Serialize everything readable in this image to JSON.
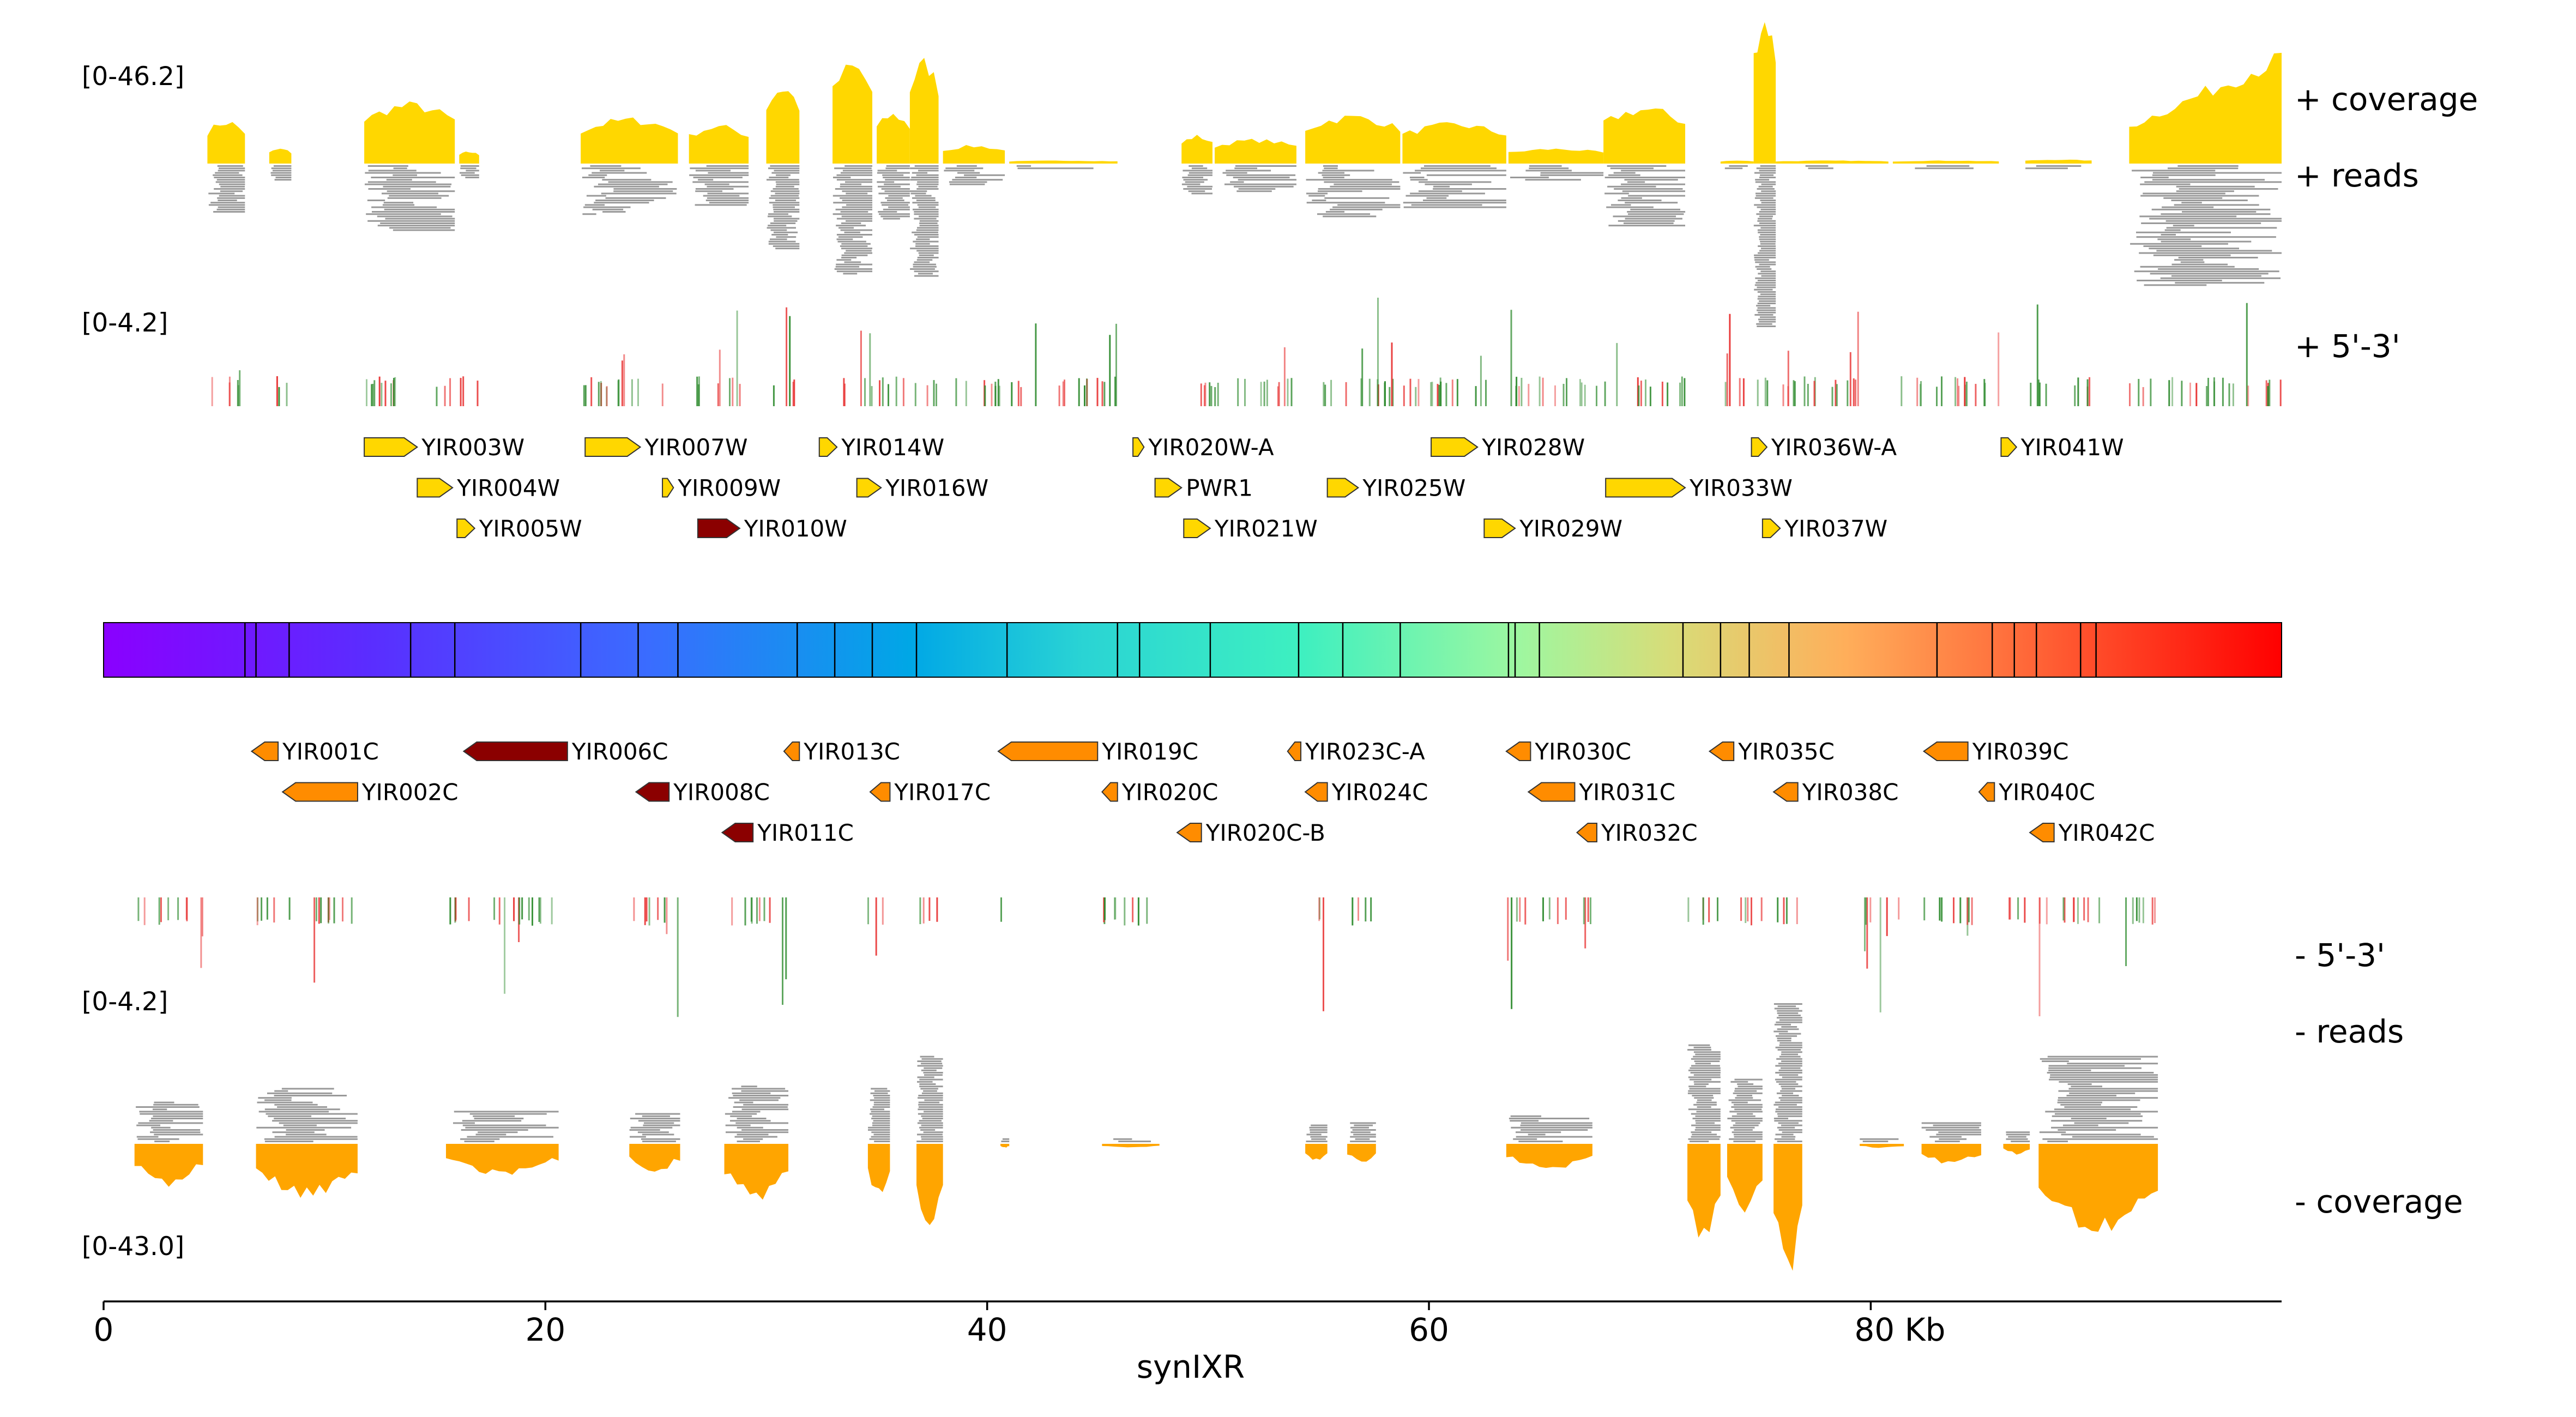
{
  "figure": {
    "xaxis": {
      "label": "synIXR",
      "range_kb": [
        0,
        98.6
      ],
      "ticks": [
        {
          "value": 0,
          "label": "0"
        },
        {
          "value": 20,
          "label": "20"
        },
        {
          "value": 40,
          "label": "40"
        },
        {
          "value": 60,
          "label": "60"
        },
        {
          "value": 80,
          "label": "80 Kb"
        }
      ]
    },
    "plus_strand": {
      "coverage_range": "[0-46.2]",
      "endseq_range": "[0-4.2]",
      "coverage_label": "+ coverage",
      "reads_label": "+ reads",
      "endseq_label": "+ 5'-3'"
    },
    "minus_strand": {
      "coverage_range": "[0-43.0]",
      "endseq_range": "[0-4.2]",
      "coverage_label": "- coverage",
      "reads_label": "- reads",
      "endseq_label": "- 5'-3'"
    },
    "colors": {
      "plus_coverage": "#FFD700",
      "minus_coverage": "#FFA500",
      "reads": "#999999",
      "end_5p": "#2e8b2e",
      "end_3p": "#e83030",
      "gene_forward": "#FFD700",
      "gene_reverse": "#FF8C00",
      "gene_dark": "#8B0000"
    },
    "genes_forward": [
      {
        "name": "YIR003W",
        "start": 11.8,
        "end": 14.2,
        "row": 0,
        "color": "yellow"
      },
      {
        "name": "YIR004W",
        "start": 14.2,
        "end": 15.8,
        "row": 1,
        "color": "yellow"
      },
      {
        "name": "YIR005W",
        "start": 16.0,
        "end": 16.8,
        "row": 2,
        "color": "yellow"
      },
      {
        "name": "YIR007W",
        "start": 21.8,
        "end": 24.3,
        "row": 0,
        "color": "yellow"
      },
      {
        "name": "YIR009W",
        "start": 25.3,
        "end": 25.8,
        "row": 1,
        "color": "yellow"
      },
      {
        "name": "YIR010W",
        "start": 26.9,
        "end": 28.8,
        "row": 2,
        "color": "dark"
      },
      {
        "name": "YIR014W",
        "start": 32.4,
        "end": 33.2,
        "row": 0,
        "color": "yellow"
      },
      {
        "name": "YIR016W",
        "start": 34.1,
        "end": 35.2,
        "row": 1,
        "color": "yellow"
      },
      {
        "name": "YIR020W-A",
        "start": 46.6,
        "end": 47.1,
        "row": 0,
        "color": "yellow"
      },
      {
        "name": "PWR1",
        "start": 47.6,
        "end": 48.8,
        "row": 1,
        "color": "yellow"
      },
      {
        "name": "YIR021W",
        "start": 48.9,
        "end": 50.1,
        "row": 2,
        "color": "yellow"
      },
      {
        "name": "YIR025W",
        "start": 55.4,
        "end": 56.8,
        "row": 1,
        "color": "yellow"
      },
      {
        "name": "YIR028W",
        "start": 60.1,
        "end": 62.2,
        "row": 0,
        "color": "yellow"
      },
      {
        "name": "YIR029W",
        "start": 62.5,
        "end": 63.9,
        "row": 2,
        "color": "yellow"
      },
      {
        "name": "YIR033W",
        "start": 68.0,
        "end": 71.6,
        "row": 1,
        "color": "yellow"
      },
      {
        "name": "YIR036W-A",
        "start": 74.6,
        "end": 75.3,
        "row": 0,
        "color": "yellow"
      },
      {
        "name": "YIR037W",
        "start": 75.1,
        "end": 75.9,
        "row": 2,
        "color": "yellow"
      },
      {
        "name": "YIR041W",
        "start": 85.9,
        "end": 86.6,
        "row": 0,
        "color": "yellow"
      }
    ],
    "genes_reverse": [
      {
        "name": "YIR001C",
        "start": 6.7,
        "end": 7.9,
        "row": 0,
        "color": "orange"
      },
      {
        "name": "YIR002C",
        "start": 8.1,
        "end": 11.5,
        "row": 1,
        "color": "orange"
      },
      {
        "name": "YIR006C",
        "start": 16.3,
        "end": 21.0,
        "row": 0,
        "color": "dark"
      },
      {
        "name": "YIR008C",
        "start": 24.1,
        "end": 25.6,
        "row": 1,
        "color": "dark"
      },
      {
        "name": "YIR011C",
        "start": 28.0,
        "end": 29.4,
        "row": 2,
        "color": "dark"
      },
      {
        "name": "YIR013C",
        "start": 30.8,
        "end": 31.5,
        "row": 0,
        "color": "orange"
      },
      {
        "name": "YIR017C",
        "start": 34.7,
        "end": 35.6,
        "row": 1,
        "color": "orange"
      },
      {
        "name": "YIR019C",
        "start": 40.5,
        "end": 45.0,
        "row": 0,
        "color": "orange"
      },
      {
        "name": "YIR020C",
        "start": 45.2,
        "end": 45.9,
        "row": 1,
        "color": "orange"
      },
      {
        "name": "YIR020C-B",
        "start": 48.6,
        "end": 49.7,
        "row": 2,
        "color": "orange"
      },
      {
        "name": "YIR023C-A",
        "start": 53.6,
        "end": 54.2,
        "row": 0,
        "color": "orange"
      },
      {
        "name": "YIR024C",
        "start": 54.4,
        "end": 55.4,
        "row": 1,
        "color": "orange"
      },
      {
        "name": "YIR030C",
        "start": 63.5,
        "end": 64.6,
        "row": 0,
        "color": "orange"
      },
      {
        "name": "YIR031C",
        "start": 64.5,
        "end": 66.6,
        "row": 1,
        "color": "orange"
      },
      {
        "name": "YIR032C",
        "start": 66.7,
        "end": 67.6,
        "row": 2,
        "color": "orange"
      },
      {
        "name": "YIR035C",
        "start": 72.7,
        "end": 73.8,
        "row": 0,
        "color": "orange"
      },
      {
        "name": "YIR038C",
        "start": 75.6,
        "end": 76.7,
        "row": 1,
        "color": "orange"
      },
      {
        "name": "YIR039C",
        "start": 82.4,
        "end": 84.4,
        "row": 0,
        "color": "orange"
      },
      {
        "name": "YIR040C",
        "start": 84.9,
        "end": 85.6,
        "row": 1,
        "color": "orange"
      },
      {
        "name": "YIR042C",
        "start": 87.2,
        "end": 88.3,
        "row": 2,
        "color": "orange"
      }
    ],
    "chromosome_bar": {
      "start": 0,
      "end": 98.6,
      "boundaries": [
        6.4,
        6.9,
        8.4,
        13.9,
        15.9,
        21.6,
        24.2,
        26.0,
        31.4,
        33.1,
        34.8,
        36.8,
        40.9,
        45.9,
        46.9,
        50.1,
        54.1,
        56.1,
        58.7,
        63.6,
        63.9,
        65.0,
        71.5,
        73.2,
        74.5,
        76.3,
        83.0,
        85.5,
        86.5,
        87.5,
        89.5,
        90.2
      ]
    },
    "plus_coverage_segments": [
      {
        "start": 4.7,
        "end": 6.4,
        "level": 0.43
      },
      {
        "start": 7.5,
        "end": 8.5,
        "level": 0.15
      },
      {
        "start": 11.8,
        "end": 15.9,
        "level": 0.6
      },
      {
        "start": 16.1,
        "end": 17.0,
        "level": 0.12
      },
      {
        "start": 21.6,
        "end": 26.0,
        "level": 0.45
      },
      {
        "start": 26.5,
        "end": 29.2,
        "level": 0.38
      },
      {
        "start": 30.0,
        "end": 31.5,
        "level": 0.78
      },
      {
        "start": 33.0,
        "end": 34.8,
        "level": 1.0
      },
      {
        "start": 35.0,
        "end": 36.5,
        "level": 0.5
      },
      {
        "start": 36.5,
        "end": 37.8,
        "level": 1.03
      },
      {
        "start": 38.0,
        "end": 40.8,
        "level": 0.18
      },
      {
        "start": 41.0,
        "end": 45.9,
        "level": 0.03
      },
      {
        "start": 48.8,
        "end": 50.2,
        "level": 0.28
      },
      {
        "start": 50.3,
        "end": 54.0,
        "level": 0.24
      },
      {
        "start": 54.4,
        "end": 58.7,
        "level": 0.48
      },
      {
        "start": 58.8,
        "end": 63.5,
        "level": 0.4
      },
      {
        "start": 63.6,
        "end": 67.9,
        "level": 0.15
      },
      {
        "start": 67.9,
        "end": 71.6,
        "level": 0.56
      },
      {
        "start": 73.2,
        "end": 74.7,
        "level": 0.03
      },
      {
        "start": 74.7,
        "end": 75.7,
        "level": 1.47
      },
      {
        "start": 75.7,
        "end": 80.8,
        "level": 0.03
      },
      {
        "start": 81.0,
        "end": 85.8,
        "level": 0.03
      },
      {
        "start": 87.0,
        "end": 90.0,
        "level": 0.04
      },
      {
        "start": 91.7,
        "end": 98.6,
        "level": 1.1
      }
    ],
    "minus_coverage_segments": [
      {
        "start": 1.4,
        "end": 4.5,
        "level": 0.4
      },
      {
        "start": 6.9,
        "end": 11.5,
        "level": 0.53
      },
      {
        "start": 15.5,
        "end": 20.6,
        "level": 0.3
      },
      {
        "start": 23.8,
        "end": 26.1,
        "level": 0.28
      },
      {
        "start": 28.1,
        "end": 31.0,
        "level": 0.55
      },
      {
        "start": 34.6,
        "end": 35.6,
        "level": 0.53
      },
      {
        "start": 36.8,
        "end": 38.0,
        "level": 0.85
      },
      {
        "start": 40.6,
        "end": 41.0,
        "level": 0.04
      },
      {
        "start": 45.2,
        "end": 47.8,
        "level": 0.04
      },
      {
        "start": 54.4,
        "end": 55.4,
        "level": 0.18
      },
      {
        "start": 56.3,
        "end": 57.6,
        "level": 0.2
      },
      {
        "start": 63.5,
        "end": 67.4,
        "level": 0.26
      },
      {
        "start": 71.7,
        "end": 73.2,
        "level": 0.95
      },
      {
        "start": 73.5,
        "end": 75.1,
        "level": 0.63
      },
      {
        "start": 75.6,
        "end": 76.9,
        "level": 1.35
      },
      {
        "start": 79.5,
        "end": 81.5,
        "level": 0.04
      },
      {
        "start": 82.3,
        "end": 85.0,
        "level": 0.2
      },
      {
        "start": 86.0,
        "end": 87.2,
        "level": 0.1
      },
      {
        "start": 87.6,
        "end": 93.0,
        "level": 0.85
      }
    ]
  }
}
